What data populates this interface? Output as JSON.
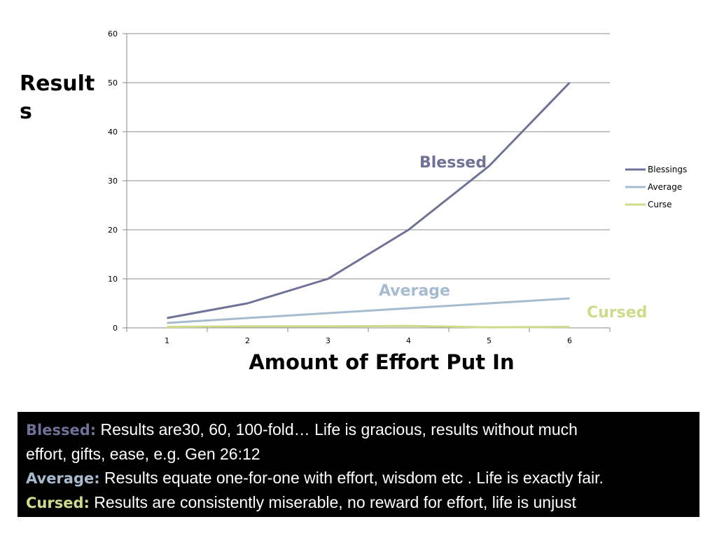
{
  "chart_data": {
    "type": "line",
    "x": [
      1,
      2,
      3,
      4,
      5,
      6
    ],
    "xlabel": "Amount of Effort Put In",
    "ylabel": "Results",
    "ylim": [
      0,
      60
    ],
    "yticks": [
      0,
      10,
      20,
      30,
      40,
      50,
      60
    ],
    "grid": true,
    "legend_position": "right",
    "series": [
      {
        "name": "Blessings",
        "color": "#6f7296",
        "values": [
          2,
          5,
          10,
          20,
          33,
          50
        ]
      },
      {
        "name": "Average",
        "color": "#a6bbd0",
        "values": [
          1,
          2,
          3,
          4,
          5,
          6
        ]
      },
      {
        "name": "Curse",
        "color": "#cfdb8b",
        "values": [
          0.2,
          0.3,
          0.3,
          0.4,
          0.1,
          0.2
        ]
      }
    ],
    "annotations": [
      {
        "text": "Blessed",
        "color": "#6f7296"
      },
      {
        "text": "Average",
        "color": "#a6bbd0"
      },
      {
        "text": "Cursed",
        "color": "#cfdb8b"
      }
    ]
  },
  "explanation": {
    "blessed_term": "Blessed:",
    "blessed_text_1": "Results are30, 60, 100-fold… Life is gracious, results without much",
    "blessed_text_2": "effort, gifts, ease, e.g. Gen 26:12",
    "average_term": "Average:",
    "average_text": "Results equate one-for-one with effort, wisdom etc . Life is exactly fair.",
    "cursed_term": "Cursed:",
    "cursed_text": "Results are consistently miserable, no reward for effort, life is unjust",
    "colors": {
      "blessed": "#6f7296",
      "average": "#a6bbd0",
      "cursed": "#cfdb8b"
    }
  }
}
